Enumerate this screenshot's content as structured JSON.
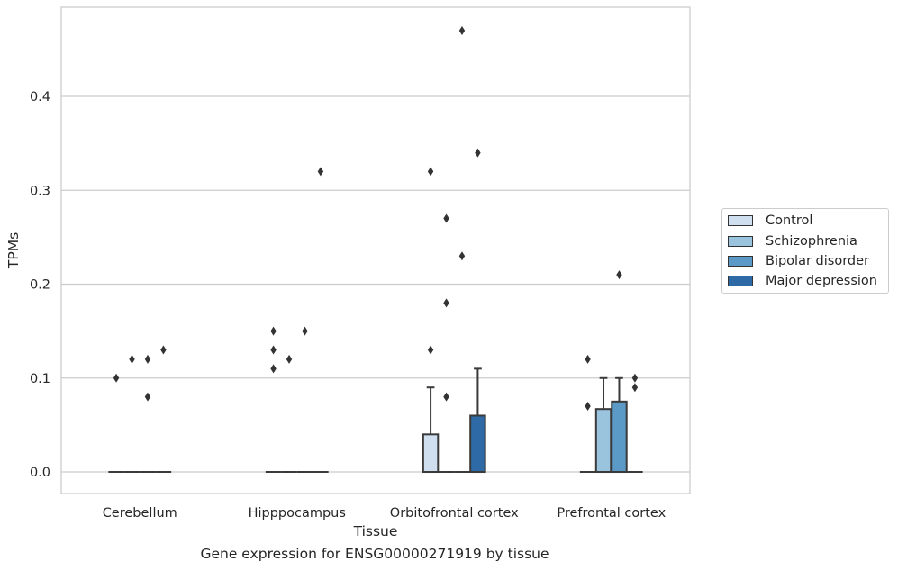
{
  "chart_data": {
    "type": "box",
    "xlabel": "Tissue",
    "ylabel": "TPMs",
    "caption": "Gene expression for ENSG00000271919 by tissue",
    "ylim": [
      -0.023,
      0.495
    ],
    "yticks": [
      0.0,
      0.1,
      0.2,
      0.3,
      0.4
    ],
    "ytick_labels": [
      "0.0",
      "0.1",
      "0.2",
      "0.3",
      "0.4"
    ],
    "grid": "horizontal",
    "legend_position": "right",
    "categories": [
      "Cerebellum",
      "Hipppocampus",
      "Orbitofrontal cortex",
      "Prefrontal cortex"
    ],
    "series": [
      {
        "name": "Control",
        "color": "#cfdff0",
        "boxes": [
          {
            "q1": 0,
            "median": 0,
            "q3": 0,
            "whisker_low": 0,
            "whisker_high": 0,
            "outliers": [
              0.1
            ]
          },
          {
            "q1": 0,
            "median": 0,
            "q3": 0,
            "whisker_low": 0,
            "whisker_high": 0,
            "outliers": [
              0.11,
              0.13,
              0.15
            ]
          },
          {
            "q1": 0,
            "median": 0,
            "q3": 0.04,
            "whisker_low": 0,
            "whisker_high": 0.09,
            "outliers": [
              0.13,
              0.32
            ]
          },
          {
            "q1": 0,
            "median": 0,
            "q3": 0,
            "whisker_low": 0,
            "whisker_high": 0,
            "outliers": [
              0.07,
              0.12
            ]
          }
        ]
      },
      {
        "name": "Schizophrenia",
        "color": "#9ac3dd",
        "boxes": [
          {
            "q1": 0,
            "median": 0,
            "q3": 0,
            "whisker_low": 0,
            "whisker_high": 0,
            "outliers": [
              0.12
            ]
          },
          {
            "q1": 0,
            "median": 0,
            "q3": 0,
            "whisker_low": 0,
            "whisker_high": 0,
            "outliers": [
              0.12
            ]
          },
          {
            "q1": 0,
            "median": 0,
            "q3": 0,
            "whisker_low": 0,
            "whisker_high": 0,
            "outliers": [
              0.08,
              0.18,
              0.27
            ]
          },
          {
            "q1": 0,
            "median": 0,
            "q3": 0.067,
            "whisker_low": 0,
            "whisker_high": 0.1,
            "outliers": []
          }
        ]
      },
      {
        "name": "Bipolar disorder",
        "color": "#5b99c6",
        "boxes": [
          {
            "q1": 0,
            "median": 0,
            "q3": 0,
            "whisker_low": 0,
            "whisker_high": 0,
            "outliers": [
              0.08,
              0.12
            ]
          },
          {
            "q1": 0,
            "median": 0,
            "q3": 0,
            "whisker_low": 0,
            "whisker_high": 0,
            "outliers": [
              0.15
            ]
          },
          {
            "q1": 0,
            "median": 0,
            "q3": 0,
            "whisker_low": 0,
            "whisker_high": 0,
            "outliers": [
              0.23,
              0.47
            ]
          },
          {
            "q1": 0,
            "median": 0,
            "q3": 0.075,
            "whisker_low": 0,
            "whisker_high": 0.1,
            "outliers": [
              0.21
            ]
          }
        ]
      },
      {
        "name": "Major depression",
        "color": "#2e6aa5",
        "boxes": [
          {
            "q1": 0,
            "median": 0,
            "q3": 0,
            "whisker_low": 0,
            "whisker_high": 0,
            "outliers": [
              0.13
            ]
          },
          {
            "q1": 0,
            "median": 0,
            "q3": 0,
            "whisker_low": 0,
            "whisker_high": 0,
            "outliers": [
              0.32
            ]
          },
          {
            "q1": 0,
            "median": 0,
            "q3": 0.06,
            "whisker_low": 0,
            "whisker_high": 0.11,
            "outliers": [
              0.34
            ]
          },
          {
            "q1": 0,
            "median": 0,
            "q3": 0,
            "whisker_low": 0,
            "whisker_high": 0,
            "outliers": [
              0.09,
              0.1
            ]
          }
        ]
      }
    ]
  }
}
